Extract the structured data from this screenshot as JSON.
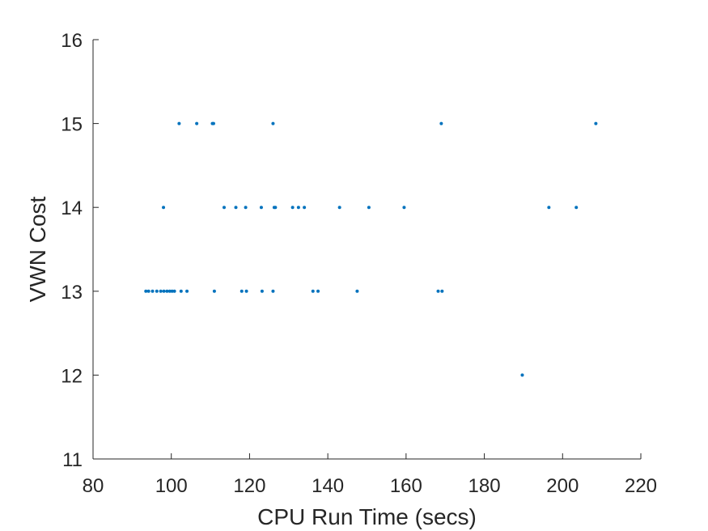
{
  "chart_data": {
    "type": "scatter",
    "title": "",
    "xlabel": "CPU Run Time (secs)",
    "ylabel": "VWN Cost",
    "xlim": [
      80,
      220
    ],
    "ylim": [
      11,
      16
    ],
    "x_ticks": [
      "80",
      "100",
      "120",
      "140",
      "160",
      "180",
      "200",
      "220"
    ],
    "y_ticks": [
      "11",
      "12",
      "13",
      "14",
      "15",
      "16"
    ],
    "grid": false,
    "legend": "none",
    "marker_color": "#0072BD",
    "series": [
      {
        "points": [
          [
            102,
            15
          ],
          [
            106.5,
            15
          ],
          [
            110.5,
            15
          ],
          [
            110.8,
            15
          ],
          [
            126,
            15
          ],
          [
            169,
            15
          ],
          [
            208.5,
            15
          ],
          [
            98,
            14
          ],
          [
            113.5,
            14
          ],
          [
            116.5,
            14
          ],
          [
            119,
            14
          ],
          [
            123,
            14
          ],
          [
            126.3,
            14
          ],
          [
            126.6,
            14
          ],
          [
            131,
            14
          ],
          [
            132.5,
            14
          ],
          [
            134,
            14
          ],
          [
            143,
            14
          ],
          [
            150.5,
            14
          ],
          [
            159.5,
            14
          ],
          [
            196.5,
            14
          ],
          [
            203.5,
            14
          ],
          [
            93.5,
            13
          ],
          [
            94.2,
            13
          ],
          [
            95.2,
            13
          ],
          [
            96.3,
            13
          ],
          [
            97.3,
            13
          ],
          [
            98.1,
            13
          ],
          [
            98.9,
            13
          ],
          [
            99.6,
            13
          ],
          [
            100.2,
            13
          ],
          [
            100.8,
            13
          ],
          [
            102.5,
            13
          ],
          [
            104,
            13
          ],
          [
            111,
            13
          ],
          [
            118,
            13
          ],
          [
            119.2,
            13
          ],
          [
            123.2,
            13
          ],
          [
            126,
            13
          ],
          [
            136.2,
            13
          ],
          [
            137.5,
            13
          ],
          [
            147.5,
            13
          ],
          [
            168.2,
            13
          ],
          [
            169.2,
            13
          ],
          [
            189.7,
            12
          ]
        ]
      }
    ]
  }
}
